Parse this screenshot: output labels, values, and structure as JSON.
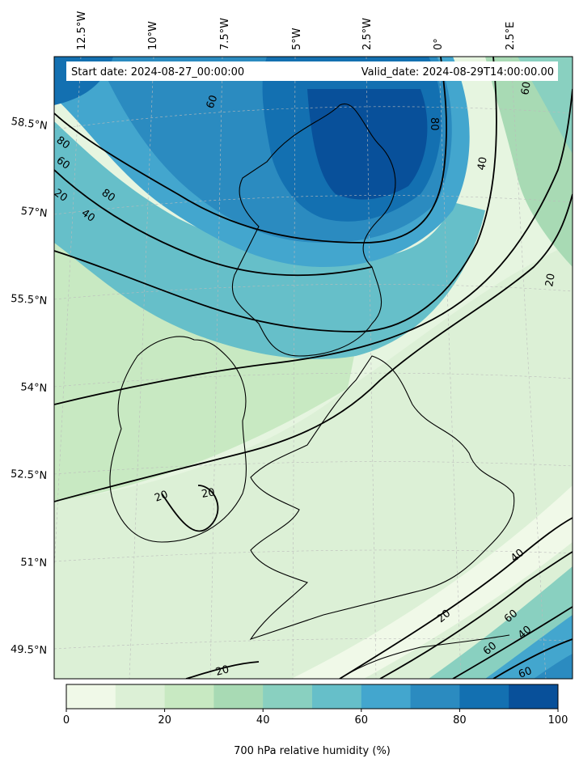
{
  "header": {
    "start_label": "Start date: 2024-08-27_00:00:00",
    "valid_label": "Valid_date: 2024-08-29T14:00:00.00"
  },
  "longitude_labels": [
    "12.5°W",
    "10°W",
    "7.5°W",
    "5°W",
    "2.5°W",
    "0°",
    "2.5°E"
  ],
  "latitude_labels": [
    "58.5°N",
    "57°N",
    "55.5°N",
    "54°N",
    "52.5°N",
    "51°N",
    "49.5°N"
  ],
  "contour_labels": [
    "60",
    "80",
    "40",
    "80",
    "60",
    "20",
    "40",
    "80",
    "60",
    "20",
    "20",
    "20",
    "40",
    "20",
    "60",
    "40",
    "60",
    "20",
    "60"
  ],
  "colorbar": {
    "ticks": [
      "0",
      "20",
      "40",
      "60",
      "80",
      "100"
    ],
    "label": "700 hPa relative humidity (%)",
    "levels": [
      0,
      10,
      20,
      30,
      40,
      50,
      60,
      70,
      80,
      90,
      100
    ],
    "colors": [
      "#f0f9e8",
      "#dcf0d6",
      "#c8e9c2",
      "#a8dab4",
      "#89d0c0",
      "#66bfc9",
      "#43a6ce",
      "#2b8bc0",
      "#1370b1",
      "#08509a"
    ]
  }
}
